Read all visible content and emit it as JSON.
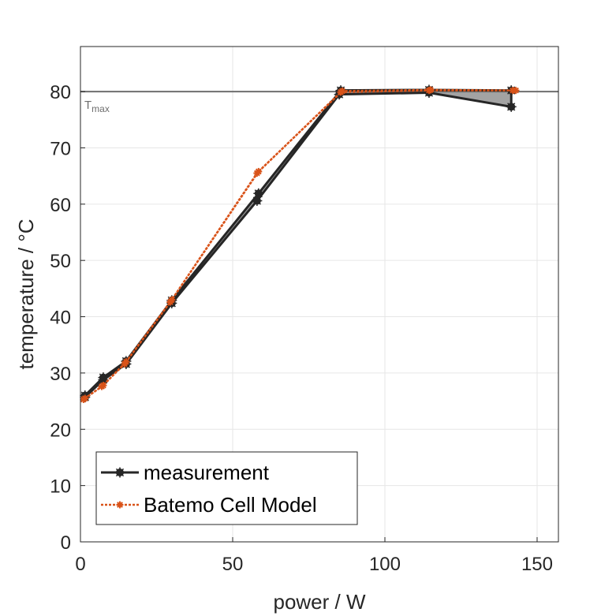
{
  "chart_data": {
    "type": "line",
    "xlabel": "power / W",
    "ylabel": "temperature / °C",
    "xlim": [
      0,
      157
    ],
    "ylim": [
      0,
      88
    ],
    "xticks": [
      0,
      50,
      100,
      150
    ],
    "yticks": [
      0,
      10,
      20,
      30,
      40,
      50,
      60,
      70,
      80
    ],
    "grid": true,
    "legend_position": "bottom-left",
    "reference_line": {
      "y": 80,
      "label_main": "T",
      "label_sub": "max"
    },
    "measurement_band": {
      "upper": [
        [
          1.5,
          26.0
        ],
        [
          7.5,
          29.2
        ],
        [
          15,
          32.1
        ],
        [
          30,
          42.9
        ],
        [
          58.5,
          61.9
        ],
        [
          85.5,
          80.2
        ],
        [
          114.5,
          80.3
        ],
        [
          141.5,
          80.2
        ]
      ],
      "lower": [
        [
          1.5,
          25.7
        ],
        [
          7.5,
          28.8
        ],
        [
          15,
          31.6
        ],
        [
          30,
          42.4
        ],
        [
          58,
          60.6
        ],
        [
          85,
          79.5
        ],
        [
          114.5,
          79.8
        ],
        [
          141.5,
          77.3
        ]
      ]
    },
    "series": [
      {
        "name": "measurement",
        "color": "#262626",
        "style": "solid",
        "marker": "asterisk-circle",
        "points": [
          [
            1.5,
            26.0
          ],
          [
            7.5,
            29.2
          ],
          [
            15,
            32.1
          ],
          [
            30,
            42.9
          ],
          [
            58.5,
            61.9
          ],
          [
            85.5,
            80.2
          ],
          [
            114.5,
            80.3
          ],
          [
            141.5,
            80.2
          ],
          [
            141.5,
            77.3
          ],
          [
            114.5,
            79.8
          ],
          [
            85,
            79.5
          ],
          [
            58,
            60.6
          ],
          [
            30,
            42.4
          ],
          [
            15,
            31.6
          ],
          [
            7.5,
            28.8
          ],
          [
            1.5,
            25.7
          ]
        ]
      },
      {
        "name": "Batemo Cell Model",
        "color": "#d95319",
        "style": "dotted",
        "marker": "small-asterisk",
        "points": [
          [
            1.5,
            25.5
          ],
          [
            7.5,
            27.8
          ],
          [
            15,
            32.0
          ],
          [
            30,
            43.0
          ],
          [
            58.5,
            65.8
          ],
          [
            86,
            80.1
          ],
          [
            115,
            80.3
          ],
          [
            143,
            80.2
          ],
          [
            142,
            80.2
          ],
          [
            114.5,
            80.2
          ],
          [
            85.5,
            79.9
          ],
          [
            58,
            65.5
          ],
          [
            29.5,
            42.6
          ],
          [
            14.5,
            31.6
          ],
          [
            7,
            27.6
          ],
          [
            1,
            25.3
          ]
        ]
      }
    ]
  }
}
